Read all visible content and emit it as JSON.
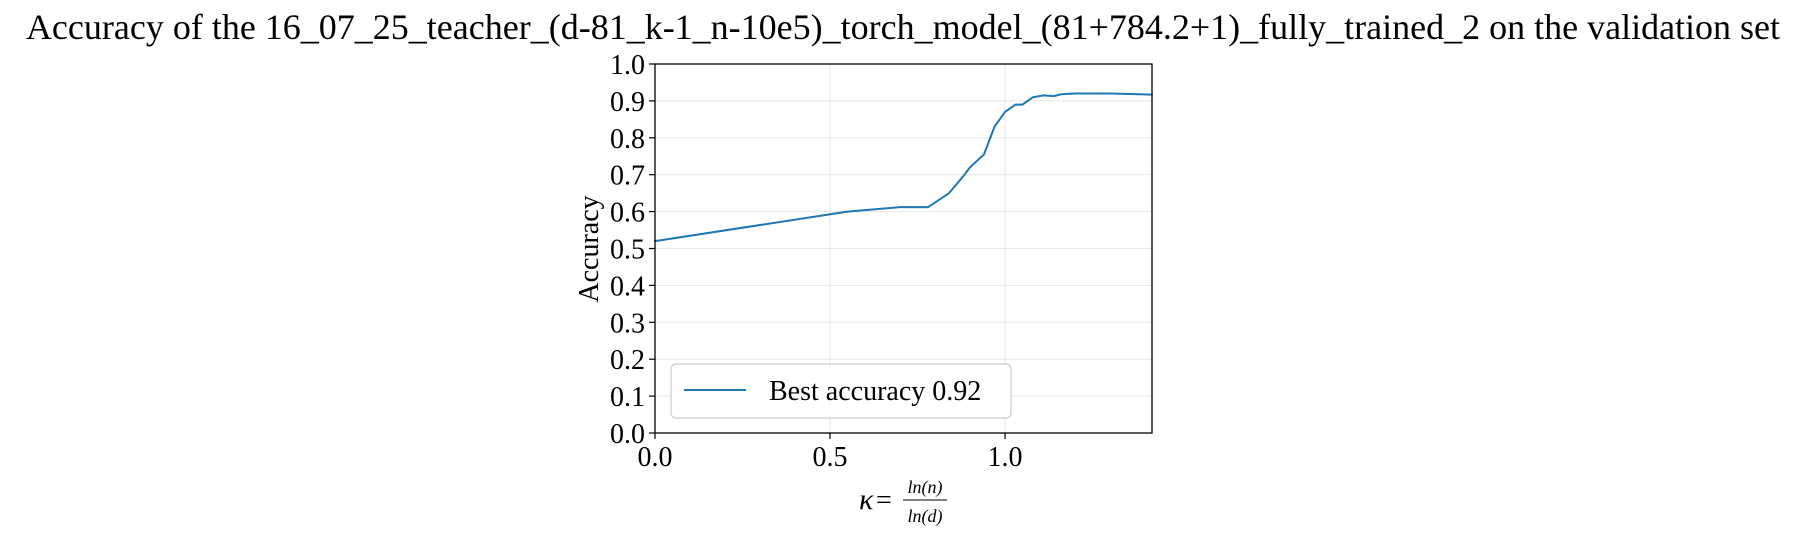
{
  "chart_data": {
    "type": "line",
    "title": "Accuracy of the 16_07_25_teacher_(d-81_k-1_n-10e5)_torch_model_(81+784.2+1)_fully_trained_2 on the validation set",
    "xlabel": {
      "symbol": "κ",
      "equals": "=",
      "numerator": "ln(n)",
      "denominator": "ln(d)"
    },
    "ylabel": "Accuracy",
    "xlim": [
      0.0,
      1.42
    ],
    "ylim": [
      0.0,
      1.0
    ],
    "x_ticks": [
      "0.0",
      "0.5",
      "1.0"
    ],
    "x_tick_values": [
      0.0,
      0.5,
      1.0
    ],
    "y_ticks": [
      "0.0",
      "0.1",
      "0.2",
      "0.3",
      "0.4",
      "0.5",
      "0.6",
      "0.7",
      "0.8",
      "0.9",
      "1.0"
    ],
    "y_tick_values": [
      0.0,
      0.1,
      0.2,
      0.3,
      0.4,
      0.5,
      0.6,
      0.7,
      0.8,
      0.9,
      1.0
    ],
    "grid": true,
    "legend_position": "lower-left",
    "series": [
      {
        "name": "Best accuracy 0.92",
        "color": "#1f77b4",
        "x": [
          0.0,
          0.55,
          0.7,
          0.78,
          0.84,
          0.88,
          0.9,
          0.94,
          0.97,
          1.0,
          1.03,
          1.05,
          1.08,
          1.11,
          1.14,
          1.16,
          1.2,
          1.3,
          1.42
        ],
        "y": [
          0.52,
          0.6,
          0.612,
          0.612,
          0.65,
          0.695,
          0.72,
          0.755,
          0.83,
          0.87,
          0.89,
          0.89,
          0.91,
          0.915,
          0.913,
          0.918,
          0.92,
          0.92,
          0.917
        ]
      }
    ]
  }
}
